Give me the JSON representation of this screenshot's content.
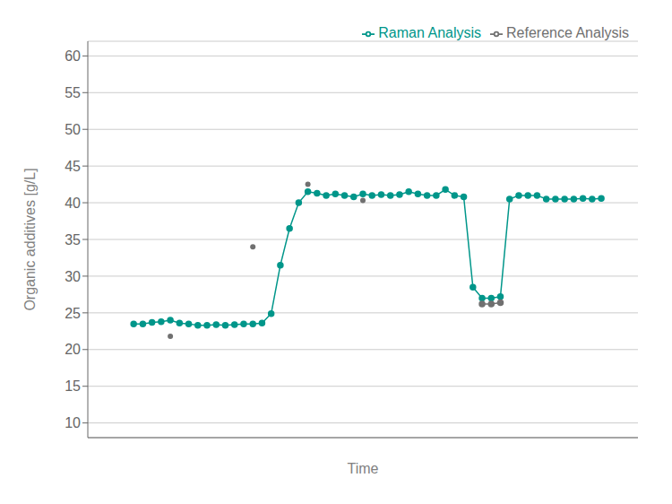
{
  "chart_data": {
    "type": "line",
    "xlabel": "Time",
    "ylabel": "Organic additives [g/L]",
    "xlim": [
      -5,
      55
    ],
    "ylim": [
      8,
      62
    ],
    "yticks": [
      10,
      15,
      20,
      25,
      30,
      35,
      40,
      45,
      50,
      55,
      60
    ],
    "grid": true,
    "legend": "upper right",
    "tick_labels": "y",
    "series": [
      {
        "name": "Raman Analysis",
        "color": "#00968A",
        "marker": "o",
        "line_style": "solid",
        "x": [
          0,
          1,
          2,
          3,
          4,
          5,
          6,
          7,
          8,
          9,
          10,
          11,
          12,
          13,
          14,
          15,
          16,
          17,
          18,
          19,
          20,
          21,
          22,
          23,
          24,
          25,
          26,
          27,
          28,
          29,
          30,
          31,
          32,
          33,
          34,
          35,
          36,
          37,
          38,
          39,
          40,
          41,
          42,
          43,
          44,
          45,
          46,
          47,
          48,
          49,
          50,
          51
        ],
        "values": [
          23.5,
          23.5,
          23.7,
          23.8,
          24.0,
          23.6,
          23.5,
          23.3,
          23.3,
          23.4,
          23.3,
          23.4,
          23.5,
          23.5,
          23.6,
          24.9,
          31.5,
          36.5,
          40.0,
          41.5,
          41.3,
          41.0,
          41.2,
          41.0,
          40.8,
          41.2,
          41.0,
          41.1,
          41.0,
          41.1,
          41.5,
          41.2,
          41.0,
          41.0,
          41.8,
          41.0,
          40.8,
          28.5,
          27.0,
          27.0,
          27.2,
          40.5,
          41.0,
          41.0,
          41.0,
          40.5,
          40.5,
          40.5,
          40.5,
          40.6,
          40.5,
          40.6
        ]
      },
      {
        "name": "Reference Analysis",
        "color": "#707070",
        "marker": "o",
        "line_style": "none",
        "x": [
          4,
          13,
          19,
          25
        ],
        "values": [
          21.8,
          34.0,
          42.5,
          40.3
        ]
      },
      {
        "name": "Reference Analysis",
        "color": "#707070",
        "marker": "o",
        "line_style": "solid",
        "x": [
          38,
          39,
          40
        ],
        "values": [
          26.2,
          26.2,
          26.4
        ]
      }
    ]
  }
}
